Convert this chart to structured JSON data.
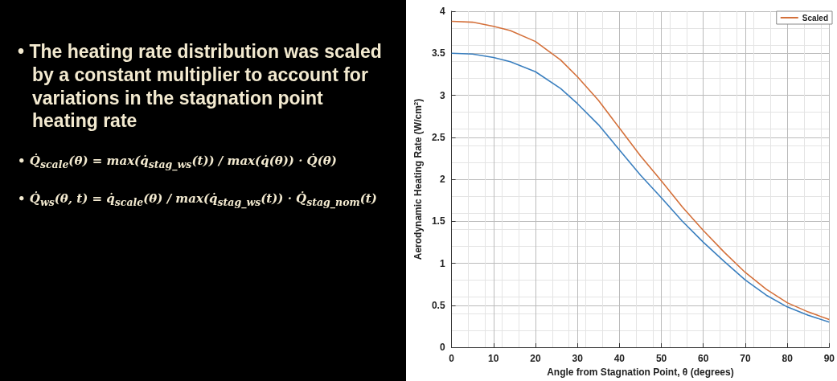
{
  "chart_data": {
    "type": "line",
    "xlabel": "Angle from Stagnation Point, θ (degrees)",
    "ylabel": "Aerodynamic Heating Rate (W/cm$^{2}$)",
    "annotations": [
      "• The heating rate distribution was scaled by a constant multiplier to account for variations in the stagnation point heating rate",
      "• Q̇$_{scale}$(θ) = max(q̇$_{stag_ws}$(t)) / max(q̇(θ)) · Q̇(θ)",
      "• Q̇$_{ws}$(θ, t) = q̇$_{scale}$(θ) / max(q̇$_{stag_ws}$(t)) · Q̇$_{stag_nom}$(t)"
    ],
    "x": [
      0,
      5,
      10,
      14,
      20,
      26,
      30,
      35,
      40,
      45,
      50,
      55,
      60,
      65,
      70,
      75,
      80,
      85,
      90
    ],
    "series": [
      {
        "color": "#3a7fbf",
        "values": [
          3.5,
          3.49,
          3.45,
          3.4,
          3.28,
          3.08,
          2.9,
          2.65,
          2.35,
          2.05,
          1.78,
          1.5,
          1.25,
          1.02,
          0.8,
          0.62,
          0.48,
          0.38,
          0.3
        ]
      },
      {
        "name": "Scaled",
        "color": "#d4703a",
        "values": [
          3.88,
          3.87,
          3.82,
          3.77,
          3.64,
          3.42,
          3.22,
          2.94,
          2.61,
          2.28,
          1.98,
          1.67,
          1.39,
          1.13,
          0.89,
          0.69,
          0.53,
          0.42,
          0.33
        ]
      }
    ],
    "xlim": [
      0,
      90
    ],
    "xticks": [
      0,
      10,
      20,
      30,
      40,
      50,
      60,
      70,
      80,
      90
    ],
    "ylim": [
      0,
      4
    ],
    "yticks": [
      0,
      0.5,
      1,
      1.5,
      2,
      2.5,
      3,
      3.5,
      4
    ],
    "grid": true,
    "legend": "top right",
    "marker": "none",
    "line_style": "solid"
  }
}
